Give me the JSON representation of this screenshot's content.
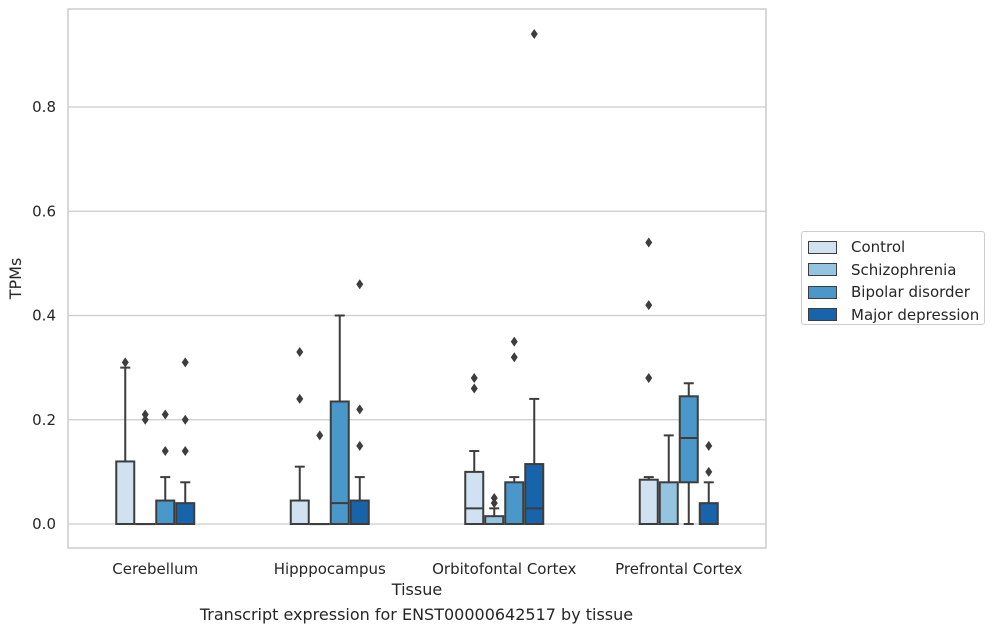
{
  "chart_data": {
    "type": "boxplot",
    "caption": "Transcript expression for ENST00000642517 by tissue",
    "xlabel": "Tissue",
    "ylabel": "TPMs",
    "ylim": [
      -0.046,
      0.986
    ],
    "yticks": [
      "0.0",
      "0.2",
      "0.4",
      "0.6",
      "0.8"
    ],
    "grid": true,
    "legend_position": "right",
    "categories": [
      "Cerebellum",
      "Hipppocampus",
      "Orbitofontal Cortex",
      "Prefrontal Cortex"
    ],
    "series": [
      {
        "name": "Control",
        "color": "#d0e1f2",
        "boxes": [
          {
            "q1": 0.0,
            "median": 0.0,
            "q3": 0.12,
            "whisker_low": 0.0,
            "whisker_high": 0.3,
            "outliers": [
              0.31
            ]
          },
          {
            "q1": 0.0,
            "median": 0.0,
            "q3": 0.045,
            "whisker_low": 0.0,
            "whisker_high": 0.11,
            "outliers": [
              0.24,
              0.33
            ]
          },
          {
            "q1": 0.0,
            "median": 0.03,
            "q3": 0.1,
            "whisker_low": 0.0,
            "whisker_high": 0.14,
            "outliers": [
              0.26,
              0.28
            ]
          },
          {
            "q1": 0.0,
            "median": 0.0,
            "q3": 0.085,
            "whisker_low": 0.0,
            "whisker_high": 0.09,
            "outliers": [
              0.28,
              0.42,
              0.54
            ]
          }
        ]
      },
      {
        "name": "Schizophrenia",
        "color": "#94c4df",
        "boxes": [
          {
            "q1": 0.0,
            "median": 0.0,
            "q3": 0.0,
            "whisker_low": 0.0,
            "whisker_high": 0.0,
            "outliers": [
              0.2,
              0.21
            ]
          },
          {
            "q1": 0.0,
            "median": 0.0,
            "q3": 0.0,
            "whisker_low": 0.0,
            "whisker_high": 0.0,
            "outliers": [
              0.17
            ]
          },
          {
            "q1": 0.0,
            "median": 0.0,
            "q3": 0.015,
            "whisker_low": 0.0,
            "whisker_high": 0.03,
            "outliers": [
              0.04,
              0.05
            ]
          },
          {
            "q1": 0.0,
            "median": 0.0,
            "q3": 0.08,
            "whisker_low": 0.0,
            "whisker_high": 0.17,
            "outliers": []
          }
        ]
      },
      {
        "name": "Bipolar disorder",
        "color": "#4a98c9",
        "boxes": [
          {
            "q1": 0.0,
            "median": 0.0,
            "q3": 0.045,
            "whisker_low": 0.0,
            "whisker_high": 0.09,
            "outliers": [
              0.14,
              0.21
            ]
          },
          {
            "q1": 0.0,
            "median": 0.04,
            "q3": 0.235,
            "whisker_low": 0.0,
            "whisker_high": 0.4,
            "outliers": []
          },
          {
            "q1": 0.0,
            "median": 0.0,
            "q3": 0.08,
            "whisker_low": 0.0,
            "whisker_high": 0.09,
            "outliers": [
              0.32,
              0.35
            ]
          },
          {
            "q1": 0.08,
            "median": 0.165,
            "q3": 0.245,
            "whisker_low": 0.0,
            "whisker_high": 0.27,
            "outliers": []
          }
        ]
      },
      {
        "name": "Major depression",
        "color": "#1764ab",
        "boxes": [
          {
            "q1": 0.0,
            "median": 0.0,
            "q3": 0.04,
            "whisker_low": 0.0,
            "whisker_high": 0.08,
            "outliers": [
              0.14,
              0.2,
              0.31
            ]
          },
          {
            "q1": 0.0,
            "median": 0.0,
            "q3": 0.045,
            "whisker_low": 0.0,
            "whisker_high": 0.09,
            "outliers": [
              0.15,
              0.22,
              0.46
            ]
          },
          {
            "q1": 0.0,
            "median": 0.03,
            "q3": 0.115,
            "whisker_low": 0.0,
            "whisker_high": 0.24,
            "outliers": [
              0.94
            ]
          },
          {
            "q1": 0.0,
            "median": 0.0,
            "q3": 0.04,
            "whisker_low": 0.0,
            "whisker_high": 0.08,
            "outliers": [
              0.1,
              0.15
            ]
          }
        ]
      }
    ]
  }
}
